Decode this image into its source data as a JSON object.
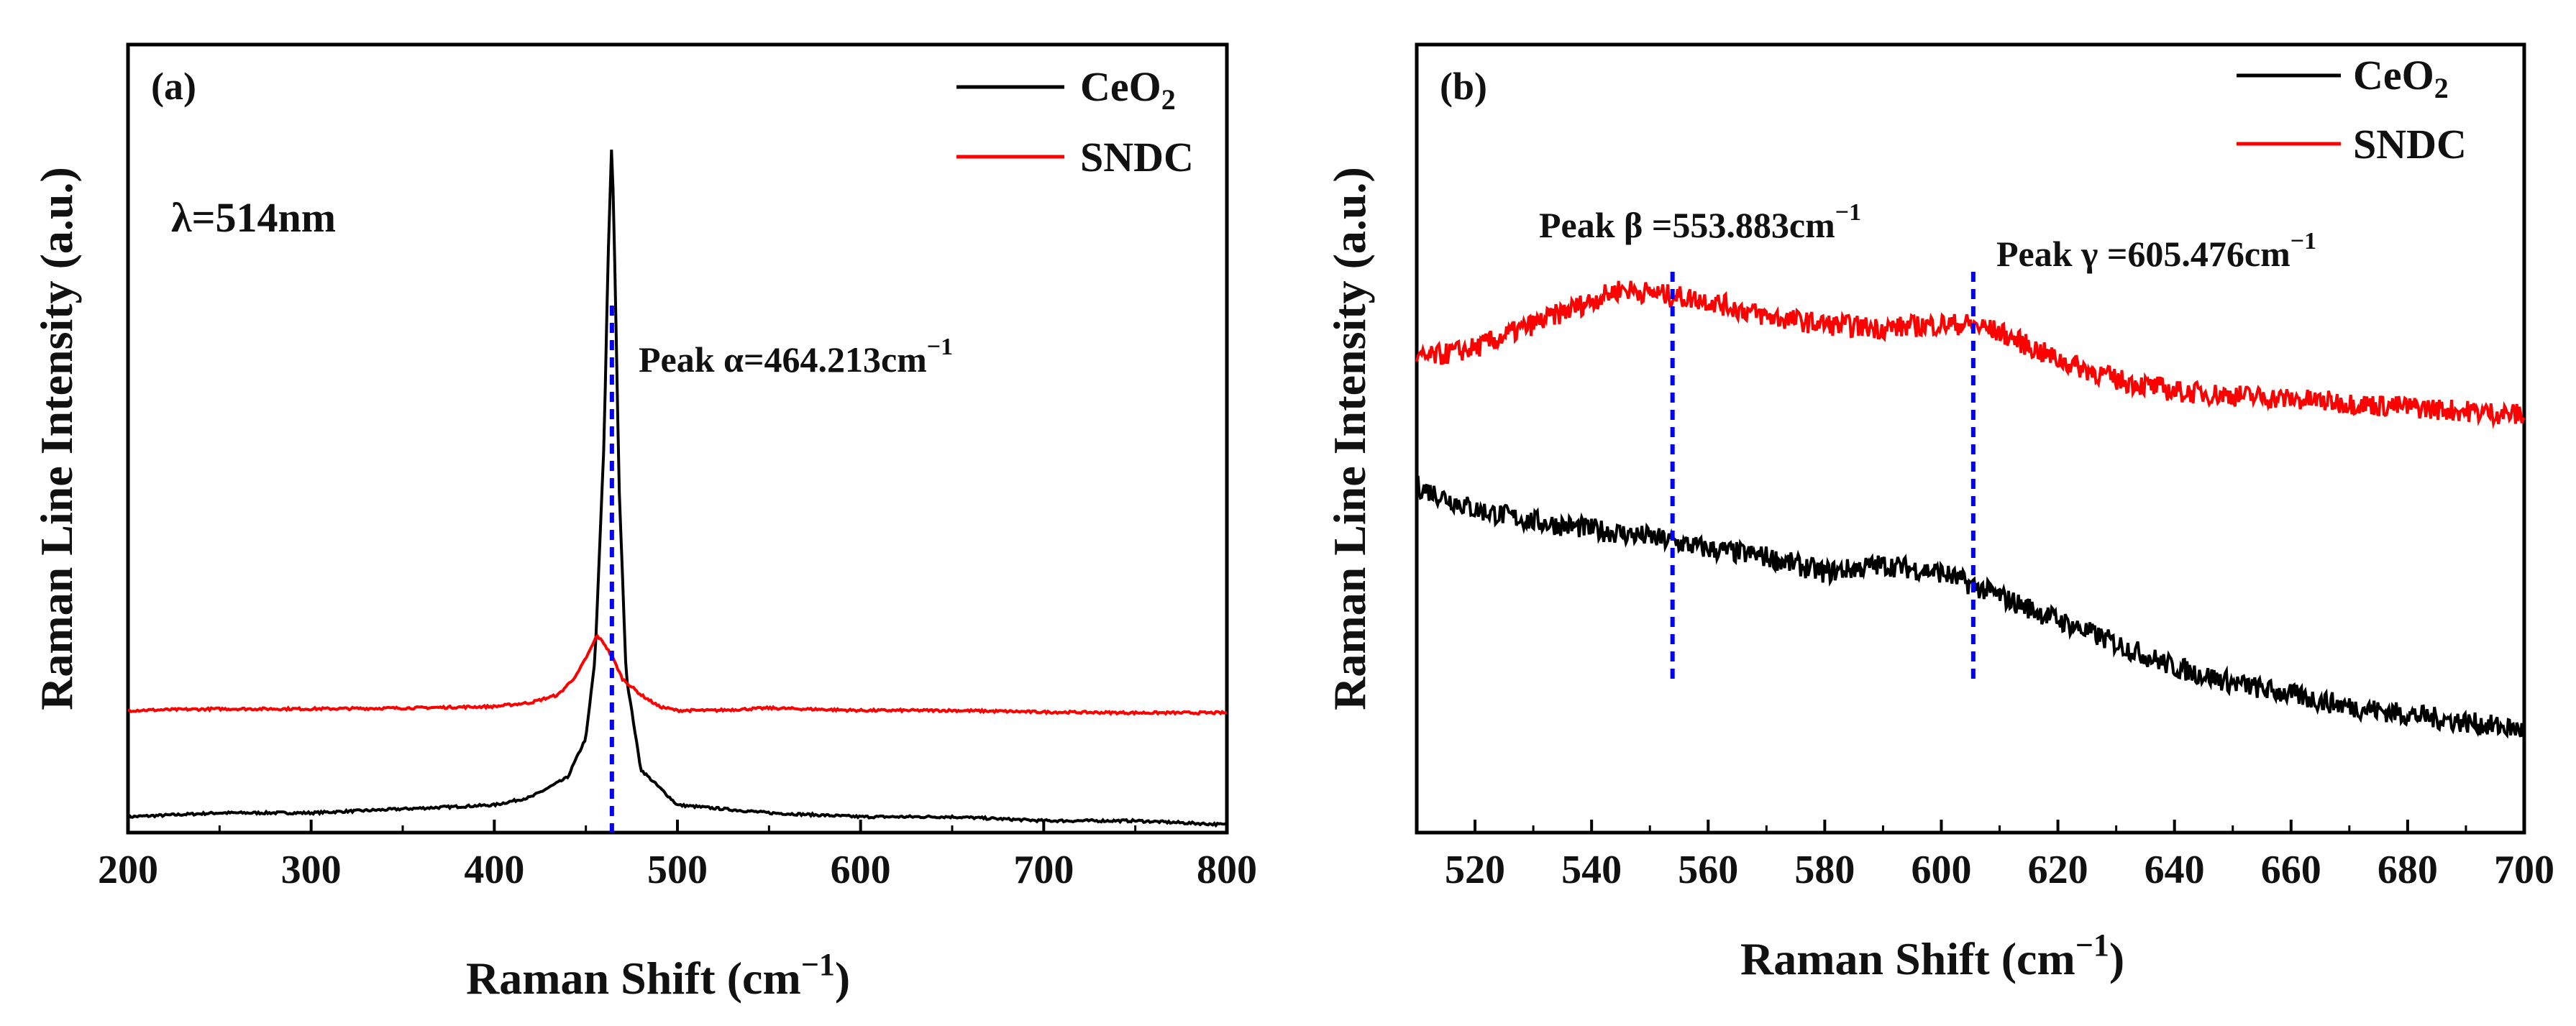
{
  "chart_data": [
    {
      "type": "line",
      "panel_label": "(a)",
      "annotation_text": "λ=514nm",
      "xlabel": "Raman Shift (cm",
      "xlabel_sup": "−1",
      "xlabel_close": ")",
      "ylabel": "Raman Line Intensity (a.u.)",
      "xlim": [
        200,
        800
      ],
      "ylim": [
        0,
        1
      ],
      "xticks": [
        200,
        300,
        400,
        500,
        600,
        700,
        800
      ],
      "grid": false,
      "legend_position": "top-right",
      "series": [
        {
          "name": "CeO",
          "name_sub": "2",
          "color": "#000000",
          "x": [
            200,
            250,
            300,
            350,
            400,
            420,
            440,
            450,
            455,
            460,
            462,
            464.2,
            466,
            468,
            472,
            480,
            500,
            550,
            600,
            650,
            700,
            750,
            800
          ],
          "y": [
            0.02,
            0.025,
            0.025,
            0.03,
            0.035,
            0.045,
            0.07,
            0.12,
            0.22,
            0.5,
            0.72,
            0.88,
            0.7,
            0.45,
            0.2,
            0.08,
            0.035,
            0.025,
            0.02,
            0.02,
            0.015,
            0.015,
            0.01
          ]
        },
        {
          "name": "SNDC",
          "color": "#ff0000",
          "x": [
            200,
            250,
            300,
            350,
            400,
            420,
            435,
            445,
            452,
            456,
            460,
            465,
            470,
            480,
            490,
            500,
            520,
            550,
            600,
            650,
            700,
            750,
            800
          ],
          "y": [
            0.155,
            0.157,
            0.157,
            0.158,
            0.16,
            0.165,
            0.175,
            0.2,
            0.23,
            0.25,
            0.24,
            0.22,
            0.195,
            0.175,
            0.16,
            0.155,
            0.155,
            0.158,
            0.155,
            0.155,
            0.153,
            0.152,
            0.152
          ]
        }
      ],
      "vlines": [
        {
          "x": 464.213,
          "label": "Peak α=464.213cm",
          "label_sup": "−1",
          "color": "#0000ff"
        }
      ]
    },
    {
      "type": "line",
      "panel_label": "(b)",
      "xlabel": "Raman Shift (cm",
      "xlabel_sup": "−1",
      "xlabel_close": ")",
      "ylabel": "Raman Line Intensity (a.u.)",
      "xlim": [
        510,
        700
      ],
      "ylim": [
        0,
        1
      ],
      "xticks": [
        520,
        540,
        560,
        580,
        600,
        620,
        640,
        660,
        680,
        700
      ],
      "grid": false,
      "legend_position": "top-right",
      "series": [
        {
          "name": "CeO",
          "name_sub": "2",
          "color": "#000000",
          "x": [
            510,
            520,
            530,
            540,
            550,
            560,
            570,
            580,
            590,
            600,
            610,
            620,
            630,
            640,
            650,
            660,
            670,
            680,
            690,
            700
          ],
          "y": [
            0.44,
            0.41,
            0.395,
            0.385,
            0.375,
            0.36,
            0.35,
            0.33,
            0.34,
            0.33,
            0.3,
            0.27,
            0.24,
            0.21,
            0.19,
            0.175,
            0.16,
            0.15,
            0.14,
            0.13
          ]
        },
        {
          "name": "SNDC",
          "color": "#ff0000",
          "x": [
            510,
            520,
            530,
            540,
            545,
            550,
            560,
            570,
            580,
            590,
            600,
            605,
            610,
            620,
            630,
            640,
            650,
            660,
            670,
            680,
            690,
            700
          ],
          "y": [
            0.6,
            0.615,
            0.645,
            0.675,
            0.69,
            0.685,
            0.675,
            0.655,
            0.645,
            0.64,
            0.645,
            0.645,
            0.635,
            0.6,
            0.575,
            0.56,
            0.555,
            0.55,
            0.545,
            0.54,
            0.535,
            0.53
          ]
        }
      ],
      "vlines": [
        {
          "x": 553.883,
          "label": "Peak β =553.883cm",
          "label_sup": "−1",
          "color": "#0000ff"
        },
        {
          "x": 605.476,
          "label": "Peak γ =605.476cm",
          "label_sup": "−1",
          "color": "#0000ff"
        }
      ]
    }
  ]
}
